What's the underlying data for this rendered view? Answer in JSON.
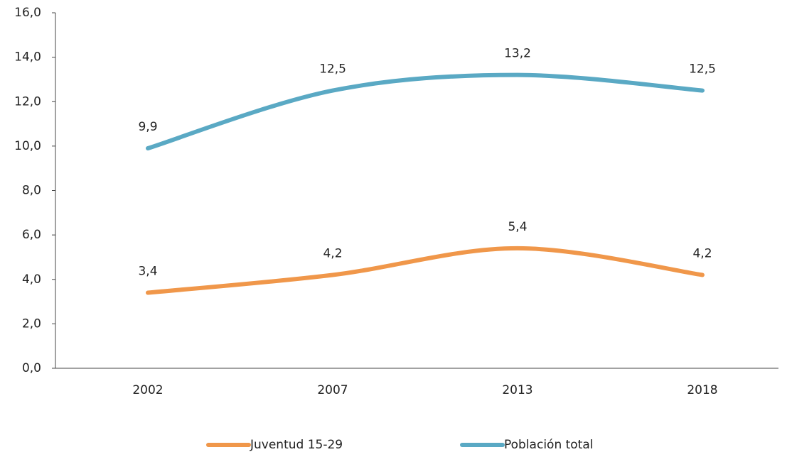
{
  "chart_data": {
    "type": "line",
    "categories": [
      "2002",
      "2007",
      "2013",
      "2018"
    ],
    "series": [
      {
        "name": "Juventud 15-29",
        "color": "#f0974a",
        "values": [
          3.4,
          4.2,
          5.4,
          4.2
        ],
        "value_labels": [
          "3,4",
          "4,2",
          "5,4",
          "4,2"
        ]
      },
      {
        "name": "Población total",
        "color": "#5aa9c4",
        "values": [
          9.9,
          12.5,
          13.2,
          12.5
        ],
        "value_labels": [
          "9,9",
          "12,5",
          "13,2",
          "12,5"
        ]
      }
    ],
    "ylim": [
      0,
      16
    ],
    "yticks": [
      {
        "value": 0,
        "label": "0,0"
      },
      {
        "value": 2,
        "label": "2,0"
      },
      {
        "value": 4,
        "label": "4,0"
      },
      {
        "value": 6,
        "label": "6,0"
      },
      {
        "value": 8,
        "label": "8,0"
      },
      {
        "value": 10,
        "label": "10,0"
      },
      {
        "value": 12,
        "label": "12,0"
      },
      {
        "value": 14,
        "label": "14,0"
      },
      {
        "value": 16,
        "label": "16,0"
      }
    ],
    "legend": "bottom"
  }
}
